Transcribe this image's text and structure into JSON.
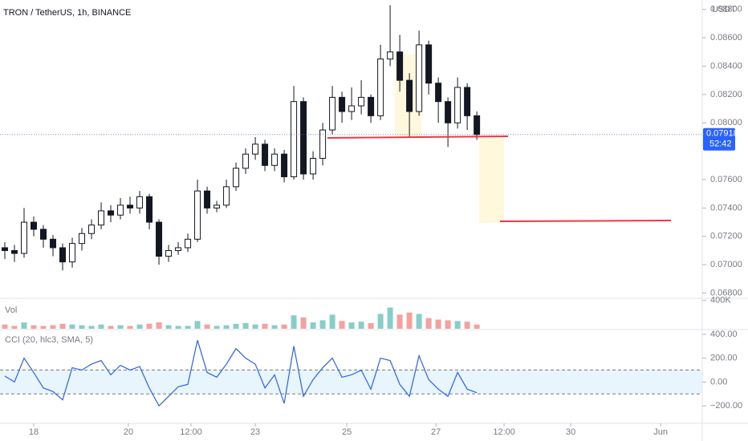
{
  "chart_data": {
    "type": "candlestick",
    "title": "TRON / TetherUS, 1h, BINANCE",
    "currency": "USDT",
    "up_color": "#26a69a",
    "down_color": "#ef5350",
    "wick_color": "#131722",
    "body_up": "#ffffff",
    "body_down": "#131722",
    "open": [
      0.0712,
      0.071,
      0.0708,
      0.073,
      0.0725,
      0.0718,
      0.0712,
      0.0702,
      0.0715,
      0.0722,
      0.0728,
      0.0738,
      0.0735,
      0.0742,
      0.074,
      0.0748,
      0.073,
      0.0706,
      0.071,
      0.0712,
      0.0718,
      0.0752,
      0.074,
      0.0742,
      0.0755,
      0.0768,
      0.0778,
      0.0785,
      0.077,
      0.0778,
      0.0762,
      0.0815,
      0.0764,
      0.0775,
      0.0795,
      0.0818,
      0.0808,
      0.0812,
      0.0818,
      0.0805,
      0.0845,
      0.085,
      0.083,
      0.0808,
      0.0855,
      0.0828,
      0.0815,
      0.08,
      0.0825,
      0.0805
    ],
    "high": [
      0.0716,
      0.0714,
      0.074,
      0.0734,
      0.0728,
      0.0721,
      0.0715,
      0.0719,
      0.0726,
      0.0732,
      0.0744,
      0.0742,
      0.0747,
      0.0748,
      0.0752,
      0.075,
      0.0732,
      0.0714,
      0.0716,
      0.0722,
      0.076,
      0.0755,
      0.0745,
      0.076,
      0.0772,
      0.0782,
      0.079,
      0.0788,
      0.0782,
      0.0781,
      0.0826,
      0.0818,
      0.078,
      0.08,
      0.0826,
      0.0822,
      0.0825,
      0.083,
      0.082,
      0.0855,
      0.0883,
      0.0862,
      0.0835,
      0.0865,
      0.0858,
      0.0832,
      0.0818,
      0.0832,
      0.0828,
      0.0808
    ],
    "low": [
      0.0704,
      0.0702,
      0.0705,
      0.072,
      0.0712,
      0.0706,
      0.0696,
      0.0698,
      0.071,
      0.0718,
      0.0725,
      0.073,
      0.0732,
      0.0736,
      0.0736,
      0.0725,
      0.07,
      0.0702,
      0.0707,
      0.0709,
      0.0716,
      0.0736,
      0.0737,
      0.074,
      0.0752,
      0.0764,
      0.0774,
      0.0766,
      0.0766,
      0.0758,
      0.076,
      0.076,
      0.076,
      0.077,
      0.0792,
      0.08,
      0.0802,
      0.0806,
      0.08,
      0.0802,
      0.084,
      0.0822,
      0.079,
      0.0805,
      0.082,
      0.08,
      0.0783,
      0.0796,
      0.0795,
      0.0788
    ],
    "close": [
      0.071,
      0.0708,
      0.073,
      0.0725,
      0.0718,
      0.0712,
      0.0702,
      0.0715,
      0.0722,
      0.0728,
      0.0738,
      0.0735,
      0.0742,
      0.074,
      0.0748,
      0.073,
      0.0706,
      0.071,
      0.0712,
      0.0718,
      0.0752,
      0.074,
      0.0742,
      0.0755,
      0.0768,
      0.0778,
      0.0785,
      0.077,
      0.0778,
      0.0762,
      0.0815,
      0.0764,
      0.0775,
      0.0795,
      0.0818,
      0.0808,
      0.0812,
      0.0818,
      0.0805,
      0.0845,
      0.085,
      0.083,
      0.0808,
      0.0855,
      0.0828,
      0.0815,
      0.08,
      0.0825,
      0.0805,
      0.07918
    ],
    "ylim": [
      0.06775,
      0.08866
    ],
    "yticks": [
      {
        "value": 0.088,
        "label": "0.08800"
      },
      {
        "value": 0.086,
        "label": "0.08600"
      },
      {
        "value": 0.084,
        "label": "0.08400"
      },
      {
        "value": 0.082,
        "label": "0.08200"
      },
      {
        "value": 0.08,
        "label": "0.08000"
      },
      {
        "value": 0.076,
        "label": "0.07600"
      },
      {
        "value": 0.074,
        "label": "0.07400"
      },
      {
        "value": 0.072,
        "label": "0.07200"
      },
      {
        "value": 0.07,
        "label": "0.07000"
      },
      {
        "value": 0.068,
        "label": "0.06800"
      }
    ],
    "xlim": [
      -0.5,
      72.4
    ],
    "xticks": [
      {
        "value": 3,
        "label": "18"
      },
      {
        "value": 12.83,
        "label": "20"
      },
      {
        "value": 19.33,
        "label": "12:00"
      },
      {
        "value": 26,
        "label": "23"
      },
      {
        "value": 35.5,
        "label": "25"
      },
      {
        "value": 44.75,
        "label": "27"
      },
      {
        "value": 51.83,
        "label": "12:00"
      },
      {
        "value": 58.75,
        "label": "30"
      },
      {
        "value": 68.08,
        "label": "Jun"
      }
    ],
    "last_price": {
      "value": 0.07918,
      "label": "0.07918"
    },
    "countdown": "52:42",
    "volume": {
      "name": "Vol",
      "values": [
        60000,
        40000,
        90000,
        50000,
        40000,
        50000,
        70000,
        60000,
        50000,
        40000,
        60000,
        40000,
        50000,
        40000,
        60000,
        70000,
        90000,
        50000,
        40000,
        40000,
        110000,
        60000,
        40000,
        50000,
        70000,
        80000,
        60000,
        70000,
        50000,
        60000,
        190000,
        160000,
        90000,
        120000,
        200000,
        110000,
        90000,
        100000,
        80000,
        210000,
        300000,
        200000,
        230000,
        210000,
        150000,
        130000,
        120000,
        110000,
        100000,
        60000
      ],
      "ylim": [
        0,
        420000
      ],
      "yticks": [
        {
          "value": 400000,
          "label": "400K"
        }
      ]
    },
    "cci": {
      "name": "CCI (20, hlc3, SMA, 5)",
      "color": "#2962ff",
      "values": [
        50,
        0,
        200,
        80,
        -50,
        -80,
        -150,
        120,
        100,
        150,
        180,
        60,
        140,
        100,
        130,
        -50,
        -200,
        -120,
        -40,
        -20,
        350,
        80,
        40,
        150,
        280,
        200,
        150,
        -50,
        60,
        -180,
        300,
        -120,
        20,
        120,
        200,
        40,
        60,
        100,
        -60,
        200,
        180,
        -20,
        -120,
        220,
        20,
        -60,
        -120,
        80,
        -60,
        -90
      ],
      "ylim": [
        -340,
        433
      ],
      "band": [
        -100,
        100
      ],
      "yticks": [
        {
          "value": 400,
          "label": "400.00"
        },
        {
          "value": 200,
          "label": "200.00"
        },
        {
          "value": 0,
          "label": "0.00"
        },
        {
          "value": -200,
          "label": "−200.00"
        }
      ]
    }
  }
}
